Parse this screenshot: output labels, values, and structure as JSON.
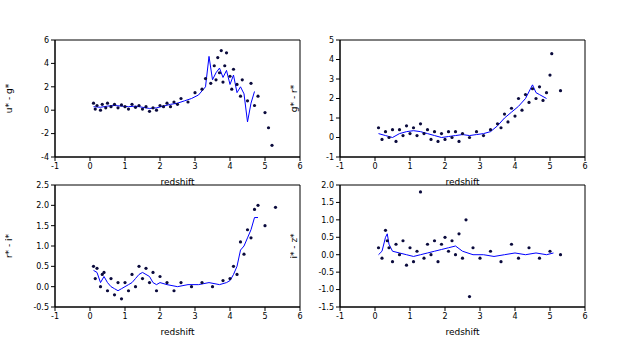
{
  "chart_data": [
    {
      "type": "scatter",
      "xlabel": "redshift",
      "ylabel": "u* - g*",
      "xlim": [
        -1,
        6
      ],
      "xticks": [
        -1,
        0,
        1,
        2,
        3,
        4,
        5,
        6
      ],
      "ylim": [
        -4,
        6
      ],
      "yticks": [
        -4,
        -2,
        0,
        2,
        4,
        6
      ],
      "grid": false,
      "series": [
        {
          "type": "scatter",
          "color": "#0a0a3c",
          "marker": "o",
          "x": [
            0.1,
            0.15,
            0.2,
            0.3,
            0.35,
            0.45,
            0.5,
            0.6,
            0.7,
            0.8,
            0.9,
            1.0,
            1.1,
            1.2,
            1.3,
            1.4,
            1.5,
            1.6,
            1.7,
            1.8,
            1.9,
            2.0,
            2.1,
            2.2,
            2.3,
            2.4,
            2.5,
            2.6,
            2.8,
            3.0,
            3.2,
            3.3,
            3.45,
            3.55,
            3.6,
            3.65,
            3.7,
            3.75,
            3.8,
            3.85,
            3.9,
            4.0,
            4.05,
            4.1,
            4.2,
            4.3,
            4.35,
            4.5,
            4.6,
            4.7,
            4.8,
            5.0,
            5.1,
            5.2
          ],
          "values": [
            0.6,
            0.1,
            0.4,
            0.0,
            0.5,
            0.2,
            0.6,
            0.3,
            0.5,
            0.2,
            0.45,
            0.3,
            0.1,
            0.5,
            0.25,
            0.4,
            0.1,
            0.3,
            -0.1,
            0.2,
            0.0,
            0.4,
            0.3,
            0.6,
            0.3,
            0.7,
            0.5,
            1.0,
            0.7,
            1.5,
            1.8,
            2.7,
            2.3,
            3.8,
            2.6,
            4.5,
            3.2,
            5.1,
            2.4,
            3.8,
            4.9,
            2.9,
            1.8,
            3.5,
            2.2,
            1.2,
            2.6,
            0.8,
            2.3,
            0.4,
            1.2,
            -0.2,
            -1.5,
            -3.0
          ]
        },
        {
          "type": "line",
          "color": "#0000ff",
          "line_style": "solid",
          "x": [
            0.1,
            0.3,
            0.5,
            0.7,
            0.9,
            1.1,
            1.3,
            1.5,
            1.7,
            1.9,
            2.1,
            2.3,
            2.5,
            2.7,
            2.9,
            3.1,
            3.3,
            3.4,
            3.5,
            3.6,
            3.7,
            3.8,
            3.9,
            4.0,
            4.1,
            4.2,
            4.3,
            4.4,
            4.5,
            4.6,
            4.7
          ],
          "values": [
            0.3,
            0.25,
            0.35,
            0.4,
            0.35,
            0.3,
            0.35,
            0.25,
            0.15,
            0.2,
            0.35,
            0.5,
            0.6,
            0.8,
            1.0,
            1.3,
            2.0,
            4.6,
            2.6,
            3.2,
            3.6,
            2.8,
            3.4,
            2.2,
            3.0,
            1.5,
            2.0,
            1.4,
            -1.0,
            0.6,
            1.6
          ]
        }
      ]
    },
    {
      "type": "scatter",
      "xlabel": "redshift",
      "ylabel": "g* - r*",
      "xlim": [
        -1,
        6
      ],
      "xticks": [
        -1,
        0,
        1,
        2,
        3,
        4,
        5,
        6
      ],
      "ylim": [
        -1,
        5
      ],
      "yticks": [
        -1,
        0,
        1,
        2,
        3,
        4,
        5
      ],
      "grid": false,
      "series": [
        {
          "type": "scatter",
          "color": "#0a0a3c",
          "marker": "o",
          "x": [
            0.1,
            0.2,
            0.3,
            0.4,
            0.5,
            0.6,
            0.7,
            0.8,
            0.9,
            1.0,
            1.1,
            1.2,
            1.3,
            1.4,
            1.5,
            1.6,
            1.7,
            1.8,
            1.9,
            2.0,
            2.1,
            2.2,
            2.3,
            2.4,
            2.5,
            2.7,
            2.9,
            3.1,
            3.3,
            3.5,
            3.6,
            3.7,
            3.8,
            3.9,
            4.0,
            4.1,
            4.2,
            4.3,
            4.4,
            4.5,
            4.6,
            4.7,
            4.8,
            4.9,
            5.0,
            5.05,
            5.3
          ],
          "values": [
            0.5,
            -0.1,
            0.3,
            0.0,
            0.4,
            -0.2,
            0.4,
            0.1,
            0.6,
            0.2,
            0.5,
            0.1,
            0.7,
            0.2,
            0.4,
            -0.1,
            0.3,
            -0.2,
            0.2,
            -0.1,
            0.3,
            0.0,
            0.3,
            -0.2,
            0.2,
            0.0,
            0.3,
            0.1,
            0.4,
            0.7,
            0.5,
            1.2,
            0.8,
            1.5,
            1.1,
            2.0,
            1.4,
            2.2,
            1.8,
            2.5,
            2.0,
            2.6,
            1.9,
            2.3,
            3.2,
            4.3,
            2.4
          ]
        },
        {
          "type": "line",
          "color": "#0000ff",
          "line_style": "solid",
          "x": [
            0.1,
            0.3,
            0.5,
            0.7,
            0.9,
            1.1,
            1.3,
            1.5,
            1.7,
            1.9,
            2.1,
            2.3,
            2.5,
            2.7,
            2.9,
            3.1,
            3.3,
            3.5,
            3.7,
            3.9,
            4.1,
            4.3,
            4.5,
            4.6,
            4.7,
            4.9
          ],
          "values": [
            0.2,
            0.1,
            0.0,
            0.2,
            0.3,
            0.35,
            0.3,
            0.2,
            0.1,
            0.0,
            0.05,
            0.1,
            0.15,
            0.1,
            0.15,
            0.2,
            0.3,
            0.6,
            1.0,
            1.3,
            1.6,
            2.0,
            2.7,
            2.3,
            2.2,
            2.0
          ]
        }
      ]
    },
    {
      "type": "scatter",
      "xlabel": "redshift",
      "ylabel": "r* - i*",
      "xlim": [
        -1,
        6
      ],
      "xticks": [
        -1,
        0,
        1,
        2,
        3,
        4,
        5,
        6
      ],
      "ylim": [
        -0.5,
        2.5
      ],
      "yticks": [
        -0.5,
        {
          "value": 0,
          "label": "0.0"
        },
        0.5,
        {
          "value": 1,
          "label": "1.0"
        },
        1.5,
        {
          "value": 2,
          "label": "2.0"
        },
        2.5
      ],
      "grid": false,
      "series": [
        {
          "type": "scatter",
          "color": "#0a0a3c",
          "marker": "o",
          "x": [
            0.1,
            0.15,
            0.2,
            0.3,
            0.35,
            0.4,
            0.5,
            0.6,
            0.7,
            0.8,
            0.9,
            1.0,
            1.1,
            1.2,
            1.3,
            1.4,
            1.5,
            1.6,
            1.7,
            1.8,
            1.9,
            2.0,
            2.2,
            2.4,
            2.6,
            2.9,
            3.2,
            3.5,
            3.8,
            4.0,
            4.1,
            4.2,
            4.3,
            4.4,
            4.5,
            4.6,
            4.7,
            4.8,
            5.0,
            5.3
          ],
          "values": [
            0.5,
            0.2,
            0.45,
            0.0,
            0.3,
            0.35,
            -0.1,
            0.2,
            -0.2,
            0.1,
            -0.3,
            0.1,
            -0.1,
            0.3,
            0.0,
            0.5,
            0.2,
            0.45,
            0.1,
            0.35,
            -0.1,
            0.25,
            0.1,
            -0.1,
            0.1,
            0.0,
            0.1,
            0.0,
            0.15,
            0.2,
            0.5,
            0.3,
            1.1,
            0.8,
            1.4,
            1.2,
            1.9,
            2.0,
            1.5,
            1.95
          ]
        },
        {
          "type": "line",
          "color": "#0000ff",
          "line_style": "solid",
          "x": [
            0.1,
            0.2,
            0.3,
            0.4,
            0.5,
            0.6,
            0.7,
            0.8,
            0.9,
            1.0,
            1.1,
            1.2,
            1.3,
            1.4,
            1.5,
            1.6,
            1.7,
            1.8,
            1.9,
            2.0,
            2.2,
            2.5,
            2.8,
            3.1,
            3.4,
            3.7,
            3.9,
            4.0,
            4.1,
            4.2,
            4.3,
            4.4,
            4.5,
            4.6,
            4.7,
            4.8
          ],
          "values": [
            0.4,
            0.35,
            0.1,
            0.25,
            0.1,
            0.0,
            -0.05,
            -0.1,
            -0.05,
            0.0,
            0.05,
            0.1,
            0.2,
            0.3,
            0.35,
            0.3,
            0.25,
            0.1,
            0.05,
            0.1,
            0.05,
            0.0,
            0.05,
            0.05,
            0.1,
            0.05,
            0.1,
            0.15,
            0.3,
            0.5,
            0.9,
            1.0,
            1.2,
            1.4,
            1.7,
            1.7
          ]
        }
      ]
    },
    {
      "type": "scatter",
      "xlabel": "redshift",
      "ylabel": "i* - z*",
      "xlim": [
        -1,
        6
      ],
      "xticks": [
        -1,
        0,
        1,
        2,
        3,
        4,
        5,
        6
      ],
      "ylim": [
        -1.5,
        2.0
      ],
      "yticks": [
        -1.5,
        {
          "value": -1,
          "label": "-1.0"
        },
        -0.5,
        {
          "value": 0,
          "label": "0.0"
        },
        0.5,
        {
          "value": 1,
          "label": "1.0"
        },
        1.5,
        {
          "value": 2,
          "label": "2.0"
        }
      ],
      "grid": false,
      "series": [
        {
          "type": "scatter",
          "color": "#0a0a3c",
          "marker": "o",
          "x": [
            0.1,
            0.2,
            0.3,
            0.35,
            0.4,
            0.5,
            0.6,
            0.7,
            0.8,
            0.9,
            1.0,
            1.1,
            1.2,
            1.3,
            1.4,
            1.5,
            1.6,
            1.7,
            1.8,
            1.9,
            2.0,
            2.1,
            2.2,
            2.3,
            2.4,
            2.5,
            2.6,
            2.7,
            2.8,
            3.0,
            3.3,
            3.6,
            3.9,
            4.1,
            4.4,
            4.7,
            5.0,
            5.3
          ],
          "values": [
            0.2,
            -0.1,
            0.7,
            0.4,
            0.2,
            -0.2,
            0.3,
            0.0,
            0.4,
            -0.3,
            0.2,
            -0.2,
            0.1,
            1.8,
            -0.1,
            0.3,
            0.0,
            0.4,
            -0.2,
            0.3,
            0.5,
            0.1,
            0.4,
            0.0,
            0.6,
            -0.1,
            1.0,
            -1.2,
            0.2,
            -0.1,
            0.1,
            -0.2,
            0.3,
            -0.1,
            0.2,
            -0.1,
            0.1,
            0.0
          ]
        },
        {
          "type": "line",
          "color": "#0000ff",
          "line_style": "solid",
          "x": [
            0.1,
            0.2,
            0.3,
            0.35,
            0.4,
            0.5,
            0.7,
            0.9,
            1.1,
            1.3,
            1.5,
            1.7,
            1.9,
            2.1,
            2.3,
            2.5,
            2.8,
            3.1,
            3.4,
            3.7,
            4.0,
            4.3,
            4.6,
            4.9,
            5.1
          ],
          "values": [
            0.0,
            0.1,
            0.5,
            0.6,
            0.3,
            0.1,
            0.05,
            0.0,
            -0.05,
            0.0,
            0.05,
            0.1,
            0.15,
            0.2,
            0.25,
            0.1,
            0.0,
            0.0,
            -0.05,
            0.0,
            0.05,
            0.0,
            0.05,
            0.0,
            0.05
          ]
        }
      ]
    }
  ]
}
